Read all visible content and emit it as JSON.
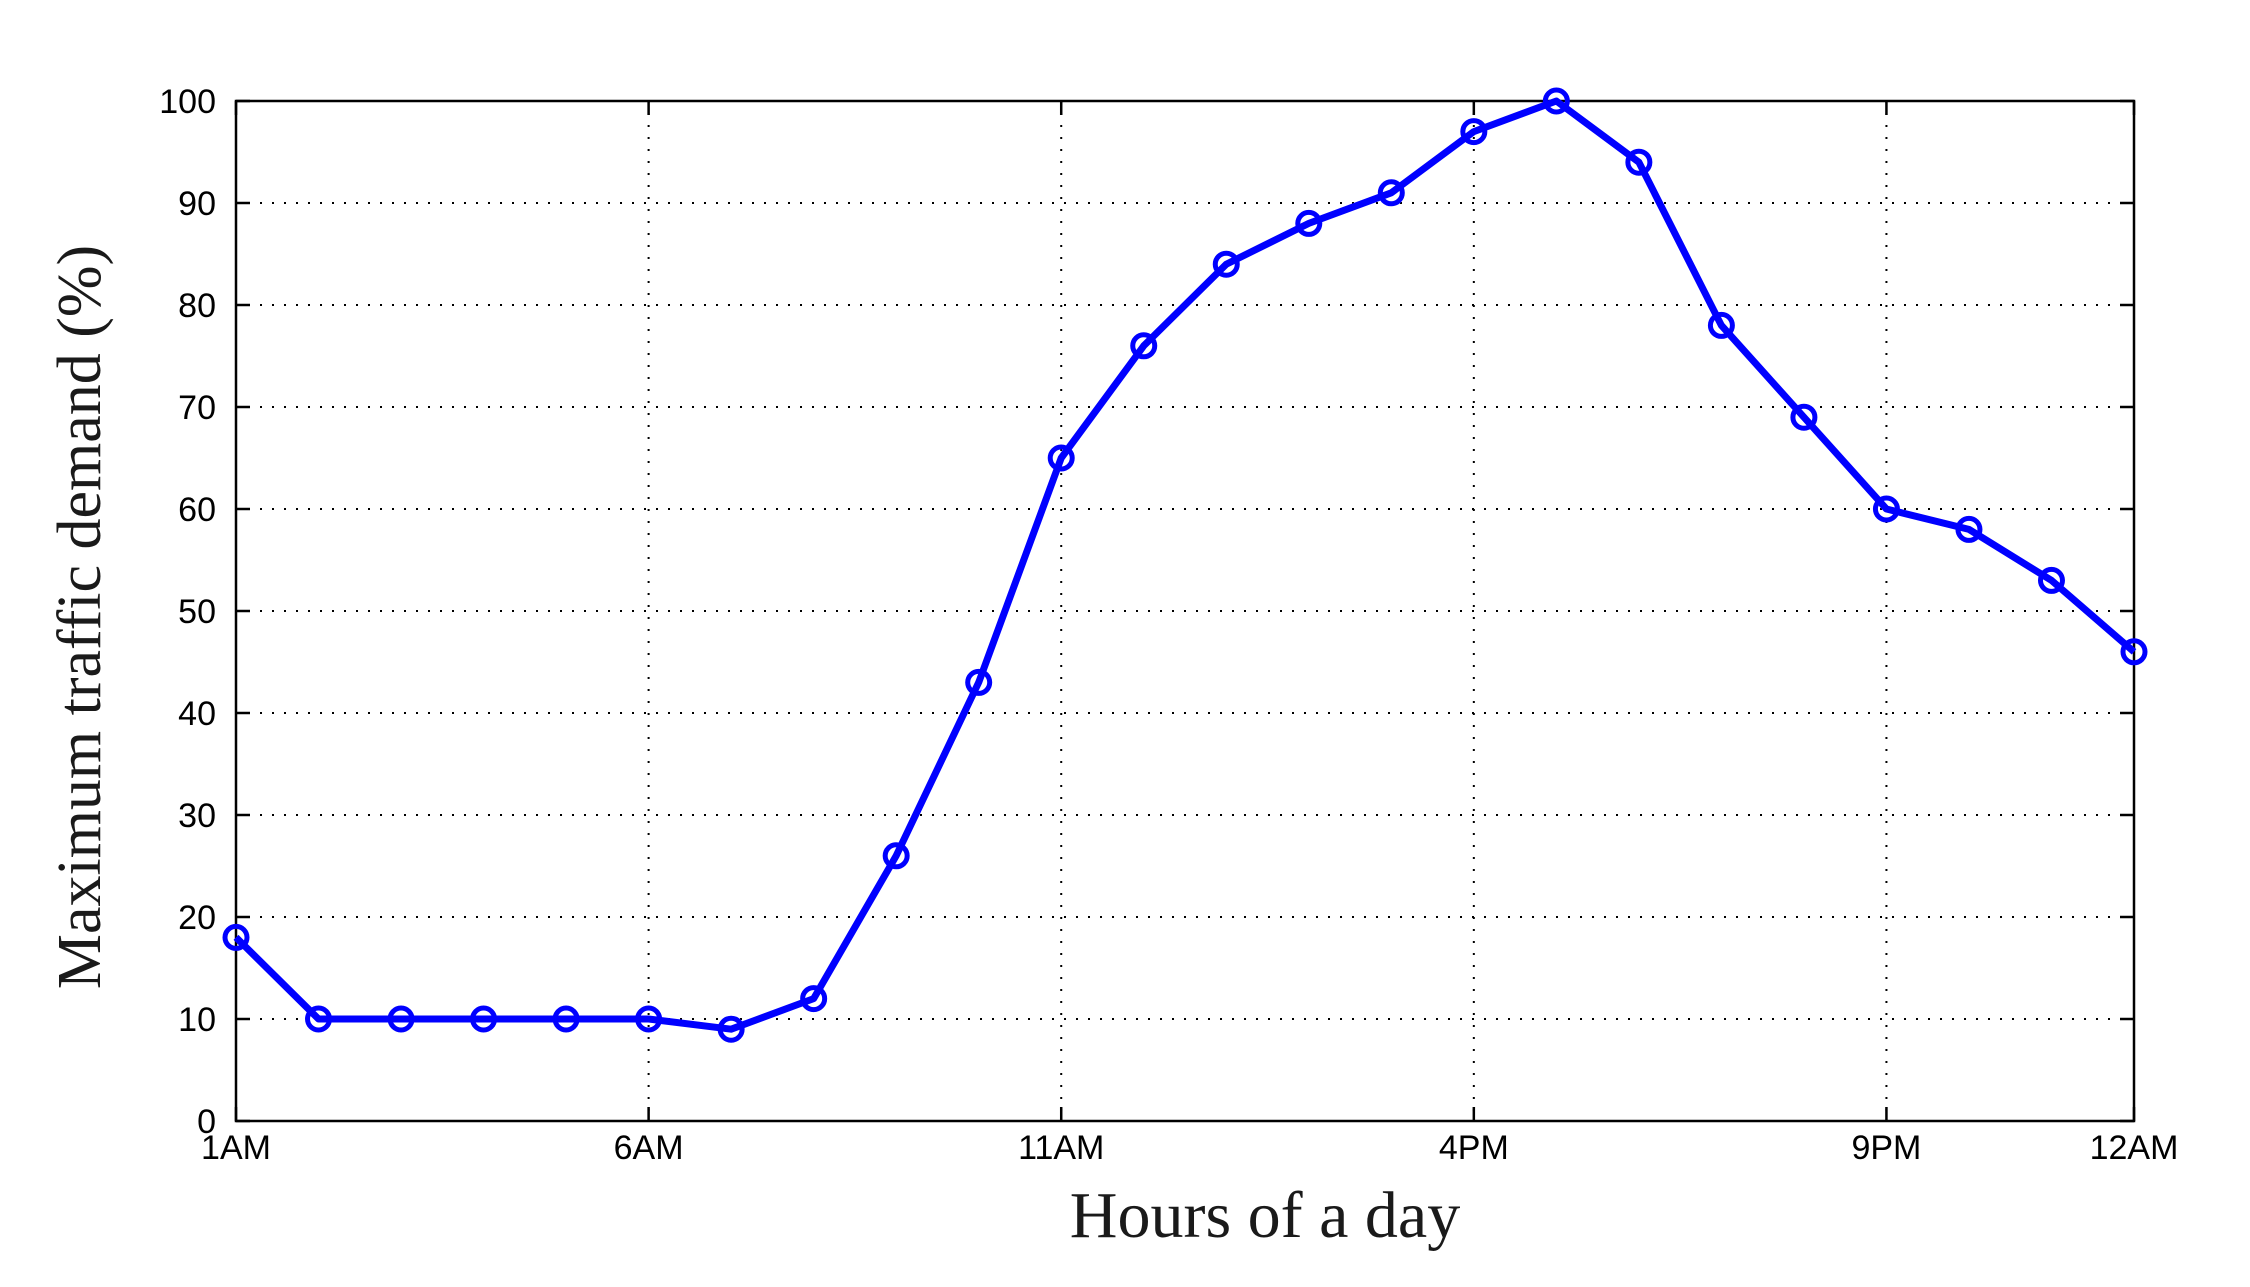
{
  "chart_data": {
    "type": "line",
    "title": "",
    "xlabel": "Hours of a day",
    "ylabel": "Maximum traffic demand (%)",
    "xlim": [
      1,
      24
    ],
    "ylim": [
      0,
      100
    ],
    "x_ticks": [
      {
        "value": 1,
        "label": "1AM"
      },
      {
        "value": 6,
        "label": "6AM"
      },
      {
        "value": 11,
        "label": "11AM"
      },
      {
        "value": 16,
        "label": "4PM"
      },
      {
        "value": 21,
        "label": "9PM"
      },
      {
        "value": 24,
        "label": "12AM"
      }
    ],
    "y_ticks": [
      0,
      10,
      20,
      30,
      40,
      50,
      60,
      70,
      80,
      90,
      100
    ],
    "grid": true,
    "line_color": "#0000ff",
    "marker": "circle",
    "series": [
      {
        "x": [
          1,
          2,
          3,
          4,
          5,
          6,
          7,
          8,
          9,
          10,
          11,
          12,
          13,
          14,
          15,
          16,
          17,
          18,
          19,
          20,
          21,
          22,
          23,
          24
        ],
        "values": [
          18,
          10,
          10,
          10,
          10,
          10,
          9,
          12,
          26,
          43,
          65,
          76,
          84,
          88,
          91,
          97,
          100,
          94,
          78,
          69,
          60,
          58,
          53,
          46
        ]
      }
    ]
  }
}
